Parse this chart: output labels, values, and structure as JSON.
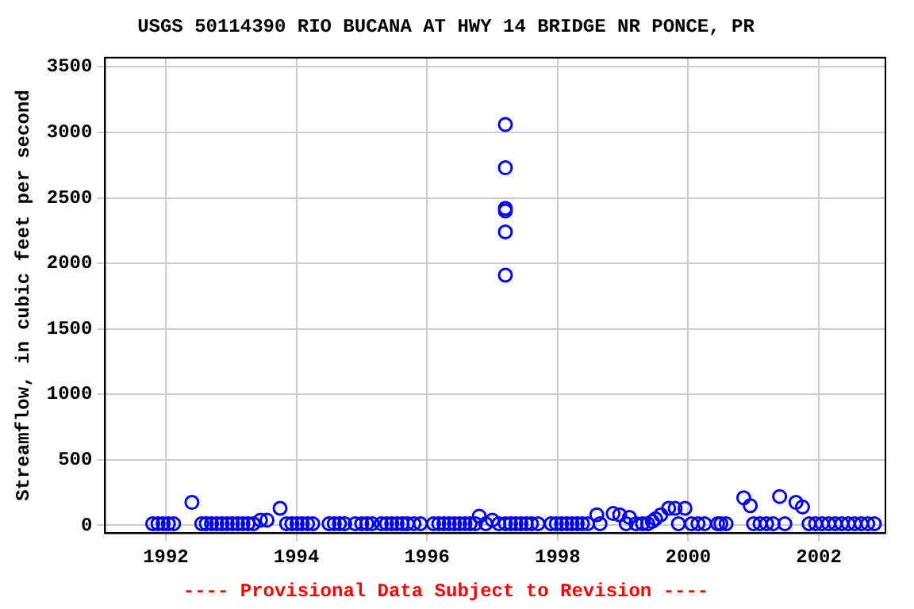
{
  "chart_data": {
    "type": "scatter",
    "title": "USGS 50114390 RIO BUCANA AT HWY 14 BRIDGE NR PONCE, PR",
    "ylabel": "Streamflow, in cubic feet per second",
    "annotations": [
      "---- Provisional Data Subject to Revision ----"
    ],
    "xlim": [
      1991.07,
      2003.02
    ],
    "xticks": [
      1992,
      1994,
      1996,
      1998,
      2000,
      2002
    ],
    "ylim": [
      -60,
      3570
    ],
    "yticks": [
      0,
      500,
      1000,
      1500,
      2000,
      2500,
      3000,
      3500
    ],
    "grid": true,
    "legend": false,
    "marker": "circle",
    "series": [
      {
        "color": "#0000ff",
        "x": [
          1991.8,
          1991.88,
          1991.96,
          1992.04,
          1992.12,
          1992.4,
          1992.55,
          1992.62,
          1992.7,
          1992.78,
          1992.86,
          1992.94,
          1993.02,
          1993.1,
          1993.18,
          1993.26,
          1993.34,
          1993.45,
          1993.55,
          1993.75,
          1993.85,
          1993.93,
          1994.01,
          1994.09,
          1994.17,
          1994.25,
          1994.5,
          1994.58,
          1994.66,
          1994.74,
          1994.9,
          1995.0,
          1995.08,
          1995.16,
          1995.3,
          1995.38,
          1995.46,
          1995.54,
          1995.62,
          1995.7,
          1995.8,
          1995.9,
          1996.1,
          1996.18,
          1996.26,
          1996.34,
          1996.42,
          1996.5,
          1996.58,
          1996.66,
          1996.74,
          1996.8,
          1996.9,
          1997.0,
          1997.1,
          1997.2,
          1997.2,
          1997.2,
          1997.2,
          1997.2,
          1997.2,
          1997.2,
          1997.28,
          1997.36,
          1997.44,
          1997.52,
          1997.6,
          1997.7,
          1997.9,
          1997.98,
          1998.06,
          1998.14,
          1998.22,
          1998.3,
          1998.38,
          1998.46,
          1998.6,
          1998.65,
          1998.85,
          1998.95,
          1999.05,
          1999.1,
          1999.2,
          1999.3,
          1999.38,
          1999.45,
          1999.5,
          1999.58,
          1999.7,
          1999.8,
          1999.85,
          1999.95,
          2000.05,
          2000.15,
          2000.25,
          2000.45,
          2000.5,
          2000.58,
          2000.85,
          2000.95,
          2001.0,
          2001.1,
          2001.2,
          2001.3,
          2001.4,
          2001.48,
          2001.65,
          2001.75,
          2001.85,
          2001.95,
          2002.05,
          2002.15,
          2002.25,
          2002.35,
          2002.45,
          2002.55,
          2002.65,
          2002.75,
          2002.85
        ],
        "values": [
          12,
          12,
          12,
          12,
          12,
          175,
          12,
          12,
          12,
          12,
          12,
          12,
          12,
          12,
          12,
          12,
          12,
          40,
          40,
          130,
          12,
          12,
          12,
          12,
          12,
          12,
          12,
          12,
          12,
          12,
          12,
          12,
          12,
          12,
          12,
          12,
          12,
          12,
          12,
          12,
          12,
          12,
          12,
          12,
          12,
          12,
          12,
          12,
          12,
          12,
          12,
          70,
          12,
          40,
          12,
          3060,
          2730,
          2420,
          2400,
          2240,
          1910,
          12,
          12,
          12,
          12,
          12,
          12,
          12,
          12,
          12,
          12,
          12,
          12,
          12,
          12,
          12,
          80,
          12,
          90,
          80,
          12,
          60,
          12,
          12,
          12,
          30,
          50,
          80,
          130,
          130,
          12,
          130,
          12,
          12,
          12,
          12,
          12,
          12,
          210,
          150,
          12,
          12,
          12,
          12,
          220,
          12,
          175,
          140,
          12,
          12,
          12,
          12,
          12,
          12,
          12,
          12,
          12,
          12,
          12
        ]
      }
    ]
  }
}
